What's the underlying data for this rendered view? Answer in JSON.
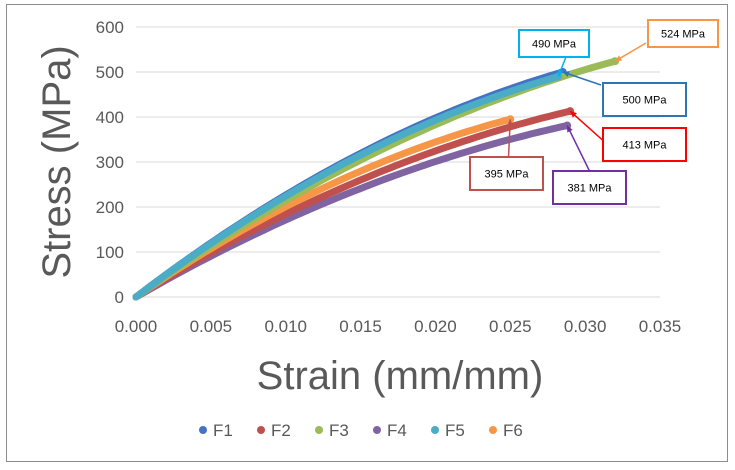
{
  "chart_data": {
    "type": "scatter",
    "title": "",
    "xlabel": "Strain (mm/mm)",
    "ylabel": "Stress (MPa)",
    "xlim": [
      0,
      0.035
    ],
    "ylim": [
      0,
      600
    ],
    "xticks": [
      0.0,
      0.005,
      0.01,
      0.015,
      0.02,
      0.025,
      0.03,
      0.035
    ],
    "xtick_labels": [
      "0.000",
      "0.005",
      "0.010",
      "0.015",
      "0.020",
      "0.025",
      "0.030",
      "0.035"
    ],
    "yticks": [
      0,
      100,
      200,
      300,
      400,
      500,
      600
    ],
    "ytick_labels": [
      "0",
      "100",
      "200",
      "300",
      "400",
      "500",
      "600"
    ],
    "grid": "horizontal",
    "legend_position": "bottom",
    "series": [
      {
        "name": "F1",
        "color": "#4472C4",
        "end": [
          0.0285,
          500
        ],
        "peak_label": "500 MPa",
        "callout_color": "#2E75B6"
      },
      {
        "name": "F2",
        "color": "#C0504D",
        "end": [
          0.029,
          413
        ],
        "peak_label": "413 MPa",
        "callout_color": "#FF0000"
      },
      {
        "name": "F3",
        "color": "#9BBB59",
        "end": [
          0.032,
          524
        ],
        "peak_label": "524 MPa",
        "callout_color": "#F79646"
      },
      {
        "name": "F4",
        "color": "#8064A2",
        "end": [
          0.0288,
          381
        ],
        "peak_label": "381 MPa",
        "callout_color": "#7030A0"
      },
      {
        "name": "F5",
        "color": "#4BACC6",
        "end": [
          0.0282,
          490
        ],
        "peak_label": "490 MPa",
        "callout_color": "#00B0F0"
      },
      {
        "name": "F6",
        "color": "#F79646",
        "end": [
          0.025,
          395
        ],
        "peak_label": "395 MPa",
        "callout_color": "#C0504D"
      }
    ]
  }
}
